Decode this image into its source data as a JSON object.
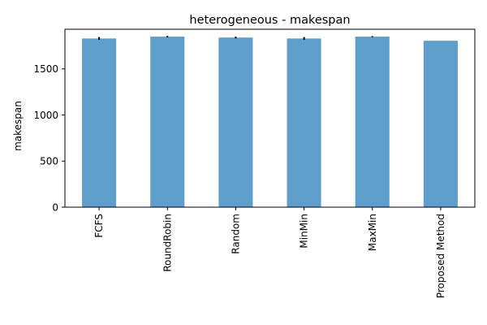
{
  "chart_data": {
    "type": "bar",
    "title": "heterogeneous - makespan",
    "xlabel": "",
    "ylabel": "makespan",
    "categories": [
      "FCFS",
      "RoundRobin",
      "Random",
      "MinMin",
      "MaxMin",
      "Proposed Method"
    ],
    "values": [
      1830,
      1850,
      1840,
      1830,
      1850,
      1805
    ],
    "errors": [
      15,
      8,
      10,
      15,
      6,
      0
    ],
    "yticks": [
      0,
      500,
      1000,
      1500
    ],
    "ylim": [
      0,
      1930
    ],
    "bar_color": "#5f9ecb",
    "error_color": "#000000",
    "grid": false,
    "legend": "none"
  }
}
